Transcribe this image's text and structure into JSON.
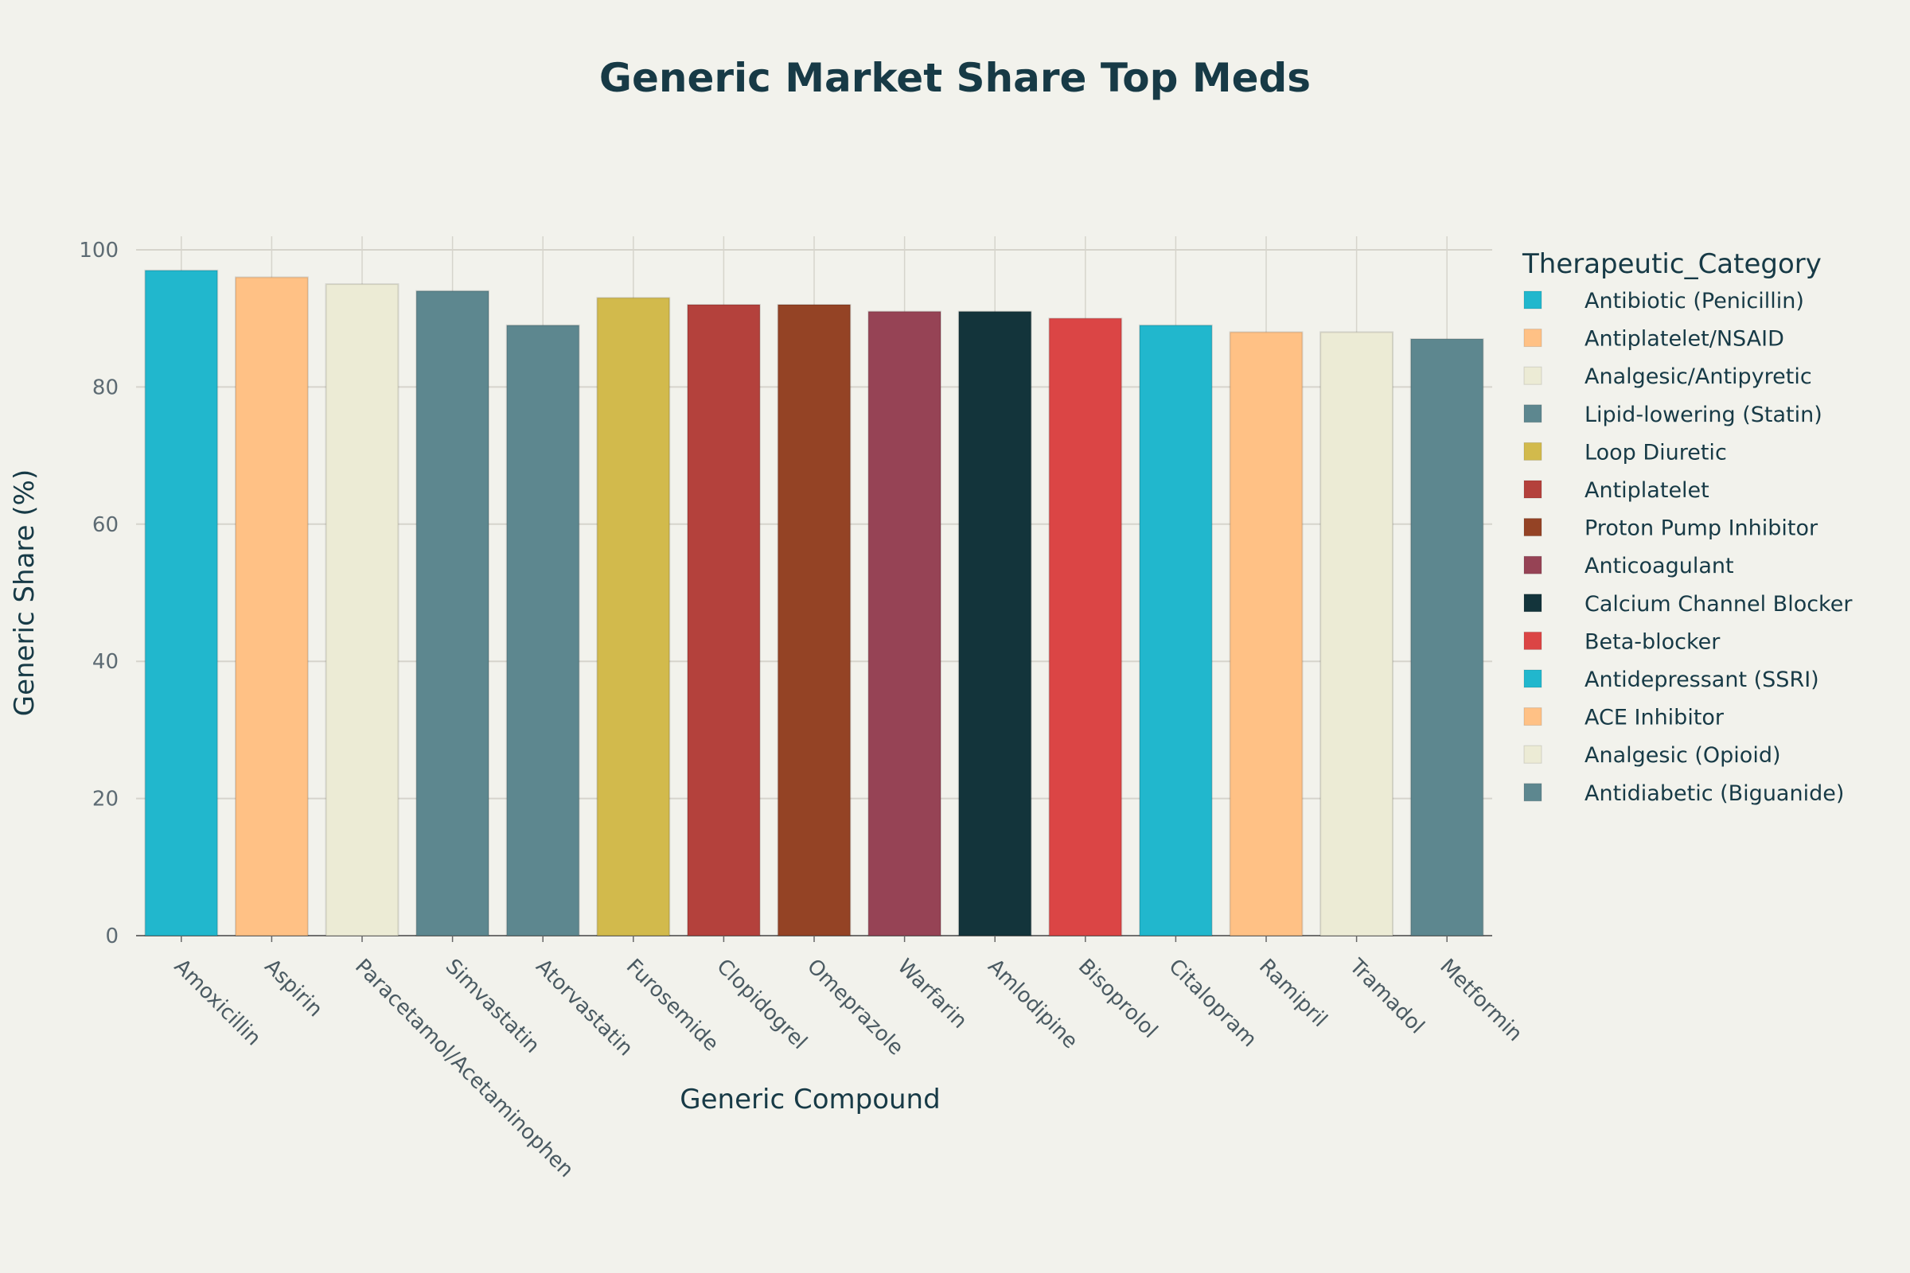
{
  "chart_data": {
    "type": "bar",
    "title": "Generic Market Share Top Meds",
    "xlabel": "Generic Compound",
    "ylabel": "Generic Share (%)",
    "ylim": [
      0,
      100
    ],
    "yticks": [
      0,
      20,
      40,
      60,
      80,
      100
    ],
    "grid": true,
    "legend_title": "Therapeutic_Category",
    "legend_placement": "right",
    "categories": [
      "Amoxicillin",
      "Aspirin",
      "Paracetamol/Acetaminophen",
      "Simvastatin",
      "Atorvastatin",
      "Furosemide",
      "Clopidogrel",
      "Omeprazole",
      "Warfarin",
      "Amlodipine",
      "Bisoprolol",
      "Citalopram",
      "Ramipril",
      "Tramadol",
      "Metformin"
    ],
    "values": [
      97,
      96,
      95,
      94,
      89,
      93,
      92,
      92,
      91,
      91,
      90,
      89,
      88,
      88,
      87
    ],
    "bar_categories": [
      "Antibiotic (Penicillin)",
      "Antiplatelet/NSAID",
      "Analgesic/Antipyretic",
      "Lipid-lowering (Statin)",
      "Lipid-lowering (Statin)",
      "Loop Diuretic",
      "Antiplatelet",
      "Proton Pump Inhibitor",
      "Anticoagulant",
      "Calcium Channel Blocker",
      "Beta-blocker",
      "Antidepressant (SSRI)",
      "ACE Inhibitor",
      "Analgesic (Opioid)",
      "Antidiabetic (Biguanide)"
    ],
    "legend": [
      {
        "name": "Antibiotic (Penicillin)",
        "color": "#21b7cd"
      },
      {
        "name": "Antiplatelet/NSAID",
        "color": "#ffc185"
      },
      {
        "name": "Analgesic/Antipyretic",
        "color": "#ecebd5"
      },
      {
        "name": "Lipid-lowering (Statin)",
        "color": "#5d878f"
      },
      {
        "name": "Loop Diuretic",
        "color": "#d2ba4c"
      },
      {
        "name": "Antiplatelet",
        "color": "#b4413c"
      },
      {
        "name": "Proton Pump Inhibitor",
        "color": "#944325"
      },
      {
        "name": "Anticoagulant",
        "color": "#964355"
      },
      {
        "name": "Calcium Channel Blocker",
        "color": "#13343b"
      },
      {
        "name": "Beta-blocker",
        "color": "#db4545"
      },
      {
        "name": "Antidepressant (SSRI)",
        "color": "#21b7cd"
      },
      {
        "name": "ACE Inhibitor",
        "color": "#ffc185"
      },
      {
        "name": "Analgesic (Opioid)",
        "color": "#ecebd5"
      },
      {
        "name": "Antidiabetic (Biguanide)",
        "color": "#5d878f"
      }
    ]
  }
}
